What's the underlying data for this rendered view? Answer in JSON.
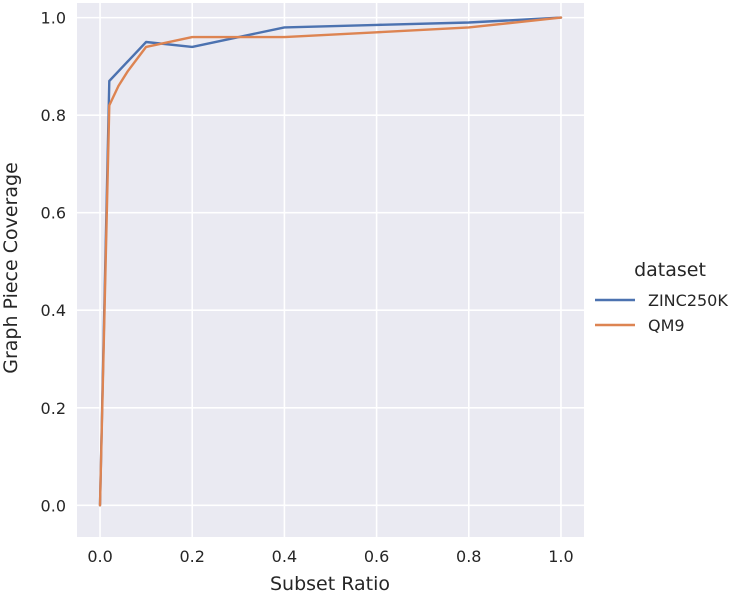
{
  "chart_data": {
    "type": "line",
    "xlabel": "Subset Ratio",
    "ylabel": "Graph Piece Coverage",
    "xlim": [
      -0.05,
      1.05
    ],
    "ylim": [
      -0.065,
      1.03
    ],
    "xticks": [
      0.0,
      0.2,
      0.4,
      0.6,
      0.8,
      1.0
    ],
    "xtick_labels": [
      "0.0",
      "0.2",
      "0.4",
      "0.6",
      "0.8",
      "1.0"
    ],
    "yticks": [
      0.0,
      0.2,
      0.4,
      0.6,
      0.8,
      1.0
    ],
    "ytick_labels": [
      "0.0",
      "0.2",
      "0.4",
      "0.6",
      "0.8",
      "1.0"
    ],
    "grid": true,
    "legend": {
      "title": "dataset",
      "placement": "right-outside"
    },
    "series": [
      {
        "name": "ZINC250K",
        "color": "#4c72b0",
        "x": [
          0.0,
          0.02,
          0.1,
          0.2,
          0.4,
          0.6,
          0.8,
          1.0
        ],
        "y": [
          0.0,
          0.87,
          0.95,
          0.94,
          0.98,
          0.985,
          0.99,
          1.0
        ]
      },
      {
        "name": "QM9",
        "color": "#dd8452",
        "x": [
          0.0,
          0.02,
          0.04,
          0.06,
          0.1,
          0.2,
          0.4,
          0.6,
          0.8,
          1.0
        ],
        "y": [
          0.0,
          0.82,
          0.86,
          0.89,
          0.94,
          0.96,
          0.96,
          0.97,
          0.98,
          1.0
        ]
      }
    ]
  }
}
